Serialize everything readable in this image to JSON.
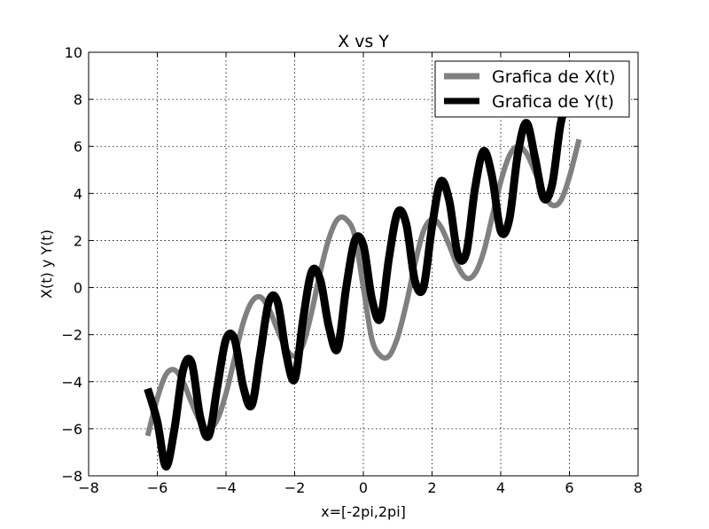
{
  "chart_data": {
    "type": "line",
    "title": "X vs Y",
    "xlabel": "x=[-2pi,2pi]",
    "ylabel": "X(t) y Y(t)",
    "xlim": [
      -8,
      8
    ],
    "ylim": [
      -8,
      10
    ],
    "xticks": [
      -8,
      -6,
      -4,
      -2,
      0,
      2,
      4,
      6,
      8
    ],
    "yticks": [
      -8,
      -6,
      -4,
      -2,
      0,
      2,
      4,
      6,
      8,
      10
    ],
    "xtick_labels": [
      "−8",
      "−6",
      "−4",
      "−2",
      "0",
      "2",
      "4",
      "6",
      "8"
    ],
    "ytick_labels": [
      "−8",
      "−6",
      "−4",
      "−2",
      "0",
      "2",
      "4",
      "6",
      "8",
      "10"
    ],
    "grid": true,
    "legend_position": "top-right",
    "series": [
      {
        "name": "Grafica de X(t)",
        "color": "#808080",
        "x": [
          -6.28,
          -6.0,
          -5.75,
          -5.5,
          -5.25,
          -5.0,
          -4.75,
          -4.5,
          -4.25,
          -4.0,
          -3.75,
          -3.5,
          -3.25,
          -3.0,
          -2.75,
          -2.5,
          -2.25,
          -2.0,
          -1.75,
          -1.5,
          -1.25,
          -1.0,
          -0.75,
          -0.5,
          -0.25,
          0.0,
          0.25,
          0.5,
          0.75,
          1.0,
          1.25,
          1.5,
          1.75,
          2.0,
          2.25,
          2.5,
          2.75,
          3.0,
          3.25,
          3.5,
          3.75,
          4.0,
          4.25,
          4.5,
          4.75,
          5.0,
          5.25,
          5.5,
          5.75,
          6.0,
          6.28
        ],
        "y": [
          -6.3,
          -4.7,
          -3.7,
          -3.5,
          -4.0,
          -4.9,
          -5.7,
          -6.0,
          -5.6,
          -4.5,
          -3.0,
          -1.5,
          -0.6,
          -0.4,
          -0.9,
          -1.8,
          -2.6,
          -2.9,
          -2.4,
          -1.0,
          0.7,
          2.1,
          2.9,
          2.9,
          2.2,
          0.0,
          -2.2,
          -2.9,
          -2.9,
          -2.1,
          -0.7,
          1.0,
          2.4,
          2.9,
          2.6,
          1.8,
          0.9,
          0.4,
          0.6,
          1.5,
          3.0,
          4.5,
          5.6,
          6.0,
          5.7,
          4.9,
          4.0,
          3.5,
          3.7,
          4.7,
          6.3
        ]
      },
      {
        "name": "Grafica de Y(t)",
        "color": "#000000",
        "x": [
          -6.28,
          -6.0,
          -5.75,
          -5.5,
          -5.25,
          -5.0,
          -4.75,
          -4.5,
          -4.25,
          -4.0,
          -3.75,
          -3.5,
          -3.25,
          -3.0,
          -2.75,
          -2.5,
          -2.25,
          -2.0,
          -1.75,
          -1.5,
          -1.25,
          -1.0,
          -0.75,
          -0.5,
          -0.25,
          0.0,
          0.25,
          0.5,
          0.75,
          1.0,
          1.25,
          1.5,
          1.75,
          2.0,
          2.25,
          2.5,
          2.75,
          3.0,
          3.25,
          3.5,
          3.75,
          4.0,
          4.25,
          4.5,
          4.75,
          5.0,
          5.25,
          5.5,
          5.75,
          6.0,
          6.1
        ],
        "y": [
          -4.3,
          -5.7,
          -7.6,
          -6.0,
          -3.5,
          -3.2,
          -5.5,
          -6.3,
          -4.2,
          -2.2,
          -2.2,
          -4.2,
          -5.0,
          -2.8,
          -0.6,
          -0.6,
          -2.8,
          -3.9,
          -1.3,
          0.7,
          0.3,
          -1.7,
          -2.6,
          0.0,
          2.0,
          1.8,
          -0.5,
          -1.3,
          1.3,
          3.2,
          2.7,
          0.3,
          0.0,
          2.6,
          4.5,
          3.7,
          1.4,
          1.5,
          4.2,
          5.8,
          4.7,
          2.4,
          2.9,
          5.7,
          7.0,
          5.5,
          3.8,
          4.4,
          7.0,
          8.0,
          8.3
        ]
      }
    ]
  }
}
